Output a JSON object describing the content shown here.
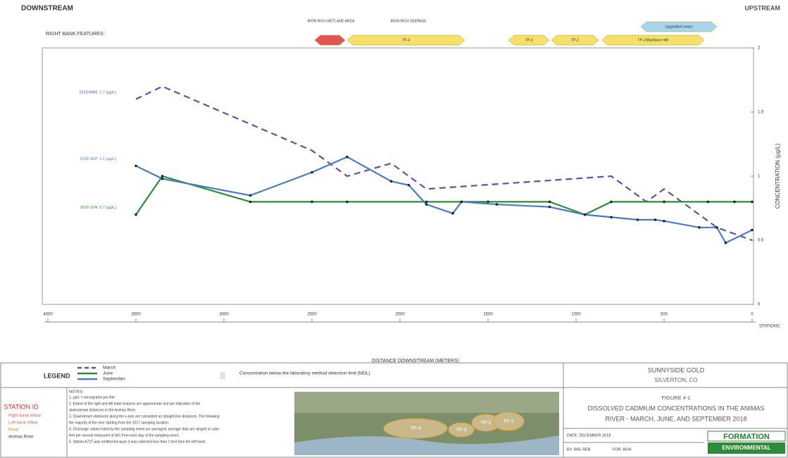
{
  "chart_data": {
    "type": "line",
    "title_left": "DOWNSTREAM",
    "title_right": "UPSTREAM",
    "features_title": "RIGHT BANK FEATURES:",
    "features": [
      "IRON RICH WETLAND AREA",
      "IRON RICH SEEPAGE",
      "TP-4",
      "TP-3",
      "TP-2",
      "TP-1/Mayflower Mill",
      "Upgradient seeps"
    ],
    "xlabel": "DISTANCE DOWNSTREAM (METERS)",
    "ylabel": "CONCENTRATION (µg/L)",
    "stations_label": "STATIONS",
    "xlim": [
      4000,
      0
    ],
    "xticks": [
      4000,
      3500,
      3000,
      2500,
      2000,
      1500,
      1000,
      500,
      0
    ],
    "ylim": [
      0,
      2
    ],
    "yticks": [
      0,
      0.5,
      1,
      1.5,
      2
    ],
    "series": [
      {
        "name": "March",
        "color": "#6b4c9a",
        "dashed": true,
        "label": "2018 MAR: 1.7 (µg/L)",
        "x": [
          3500,
          3350,
          2500,
          2300,
          2050,
          1850,
          800,
          600,
          500,
          200,
          0
        ],
        "values": [
          1.6,
          1.7,
          1.2,
          1.0,
          1.1,
          0.9,
          1.0,
          0.8,
          0.9,
          0.6,
          0.5
        ]
      },
      {
        "name": "June",
        "color": "#2e8b3a",
        "dashed": false,
        "label": "2018 JUN: 0.7 (µg/L)",
        "x": [
          3500,
          3350,
          2850,
          2500,
          2300,
          1850,
          1650,
          1500,
          1150,
          950,
          800,
          500,
          250,
          100,
          0
        ],
        "values": [
          0.7,
          1.0,
          0.8,
          0.8,
          0.8,
          0.8,
          0.8,
          0.8,
          0.8,
          0.7,
          0.8,
          0.8,
          0.8,
          0.8,
          0.8
        ]
      },
      {
        "name": "September",
        "color": "#4a7cc4",
        "dashed": false,
        "label": "2018 SEP: 1.1 (µg/L)",
        "x": [
          3500,
          3350,
          2850,
          2500,
          2300,
          2050,
          1950,
          1850,
          1700,
          1650,
          1450,
          1150,
          950,
          800,
          650,
          550,
          500,
          300,
          200,
          150,
          0
        ],
        "values": [
          1.08,
          0.98,
          0.85,
          1.03,
          1.15,
          0.96,
          0.93,
          0.78,
          0.71,
          0.8,
          0.78,
          0.76,
          0.7,
          0.68,
          0.66,
          0.66,
          0.65,
          0.6,
          0.6,
          0.48,
          0.58
        ]
      }
    ],
    "legend_title": "LEGEND",
    "mdl_note": "Concentration below the laboratory method detection limit (MDL)"
  },
  "station_id": {
    "title": "STATION ID",
    "items": [
      "Right bank inflow",
      "Left bank inflow",
      "Pond",
      "Animas River"
    ]
  },
  "notes": {
    "title": "NOTES:",
    "lines": [
      "1. µg/L = micrograms per liter",
      "2. Extent of the right and left bank features are approximate and are indicative of the",
      "   downstream distances in the Animas River.",
      "3. Downstream distances along the x-axis are calculated as straight-line distances. The following",
      "   the majority of the river starting from the 2017 sampling location.",
      "4. Discharge values listed by the sampling event are averaged; average data are ranged in cubic",
      "   feet per second measured at IM1 from each day of the sampling event.",
      "5. Station A72T was omitted because it was collected less than 1 foot from the left bank."
    ]
  },
  "map": {
    "labels": [
      "TP-4",
      "TP-3",
      "TP-2",
      "TP-1"
    ]
  },
  "title_block": {
    "client": "SUNNYSIDE GOLD",
    "location": "SILVERTON, CO",
    "figure": "FIGURE 4-1",
    "title_lines": [
      "DISSOLVED CADMIUM CONCENTRATIONS IN THE ANIMAS",
      "RIVER - MARCH, JUNE, AND SEPTEMBER 2018"
    ],
    "date": "DATE: DECEMBER 2018",
    "by": "BY: BRL  REB",
    "for": "FOR: BGH",
    "logo_top": "FORMATION",
    "logo_bottom": "ENVIRONMENTAL"
  }
}
